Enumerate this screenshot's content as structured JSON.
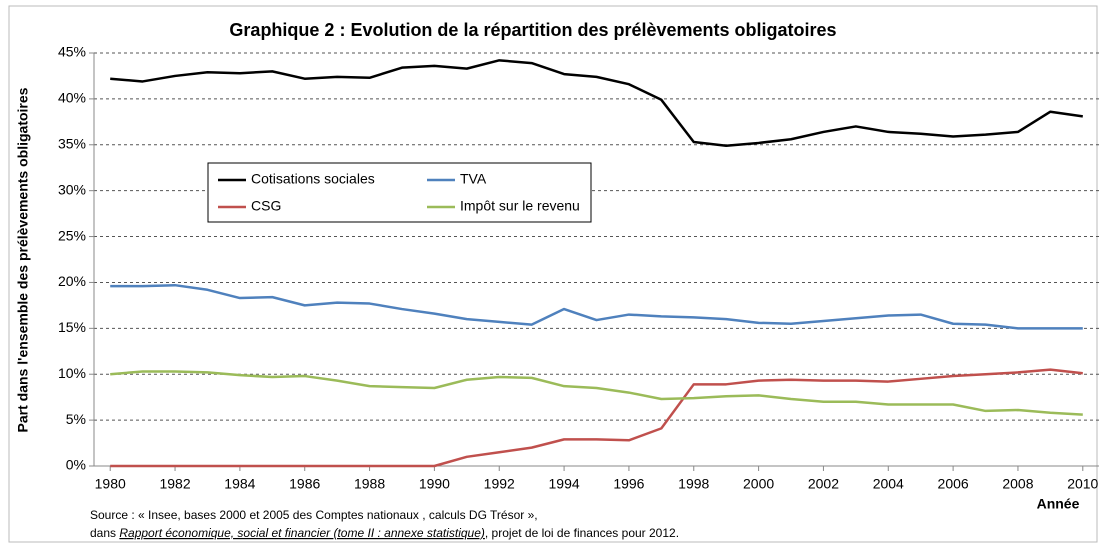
{
  "chart_data": {
    "type": "line",
    "title": "Graphique 2 : Evolution de la répartition des prélèvements obligatoires",
    "y_label": "Part dans l'ensemble des prélèvements obligatoires",
    "x_label": "Année",
    "source": [
      "Source : « Insee, bases 2000 et 2005 des Comptes nationaux , calculs DG Trésor »,",
      "dans ",
      "Rapport économique, social et financier (tome II : annexe statistique)",
      ", projet de loi de finances pour 2012."
    ],
    "x": [
      1980,
      1981,
      1982,
      1983,
      1984,
      1985,
      1986,
      1987,
      1988,
      1989,
      1990,
      1991,
      1992,
      1993,
      1994,
      1995,
      1996,
      1997,
      1998,
      1999,
      2000,
      2001,
      2002,
      2003,
      2004,
      2005,
      2006,
      2007,
      2008,
      2009,
      2010
    ],
    "xlim": [
      1979.5,
      2010.5
    ],
    "xticks": [
      1980,
      1982,
      1984,
      1986,
      1988,
      1990,
      1992,
      1994,
      1996,
      1998,
      2000,
      2002,
      2004,
      2006,
      2008,
      2010
    ],
    "ylim": [
      0,
      45
    ],
    "yticks": [
      {
        "value": 0,
        "label": "0%"
      },
      {
        "value": 5,
        "label": "5%"
      },
      {
        "value": 10,
        "label": "10%"
      },
      {
        "value": 15,
        "label": "15%"
      },
      {
        "value": 20,
        "label": "20%"
      },
      {
        "value": 25,
        "label": "25%"
      },
      {
        "value": 30,
        "label": "30%"
      },
      {
        "value": 35,
        "label": "35%"
      },
      {
        "value": 40,
        "label": "40%"
      },
      {
        "value": 45,
        "label": "45%"
      }
    ],
    "grid": true,
    "series": [
      {
        "name": "Cotisations sociales",
        "color": "#000000",
        "values": [
          42.2,
          41.9,
          42.5,
          42.9,
          42.8,
          43.0,
          42.2,
          42.4,
          42.3,
          43.4,
          43.6,
          43.3,
          44.2,
          43.9,
          42.7,
          42.4,
          41.6,
          39.9,
          35.3,
          34.9,
          35.2,
          35.6,
          36.4,
          37.0,
          36.4,
          36.2,
          35.9,
          36.1,
          36.4,
          38.6,
          38.1
        ]
      },
      {
        "name": "TVA",
        "color": "#4f81bd",
        "values": [
          19.6,
          19.6,
          19.7,
          19.2,
          18.3,
          18.4,
          17.5,
          17.8,
          17.7,
          17.1,
          16.6,
          16.0,
          15.7,
          15.4,
          17.1,
          15.9,
          16.5,
          16.3,
          16.2,
          16.0,
          15.6,
          15.5,
          15.8,
          16.1,
          16.4,
          16.5,
          15.5,
          15.4,
          15.0,
          15.0,
          15.0
        ]
      },
      {
        "name": "CSG",
        "color": "#c0504d",
        "values": [
          0,
          0,
          0,
          0,
          0,
          0,
          0,
          0,
          0,
          0,
          0,
          1.0,
          1.5,
          2.0,
          2.9,
          2.9,
          2.8,
          4.1,
          8.9,
          8.9,
          9.3,
          9.4,
          9.3,
          9.3,
          9.2,
          9.5,
          9.8,
          10.0,
          10.2,
          10.5,
          10.1
        ]
      },
      {
        "name": "Impôt sur le revenu",
        "color": "#9bbb59",
        "values": [
          10.0,
          10.3,
          10.3,
          10.2,
          9.9,
          9.7,
          9.8,
          9.3,
          8.7,
          8.6,
          8.5,
          9.4,
          9.7,
          9.6,
          8.7,
          8.5,
          8.0,
          7.3,
          7.4,
          7.6,
          7.7,
          7.3,
          7.0,
          7.0,
          6.7,
          6.7,
          6.7,
          6.0,
          6.1,
          5.8,
          5.6
        ]
      }
    ]
  }
}
